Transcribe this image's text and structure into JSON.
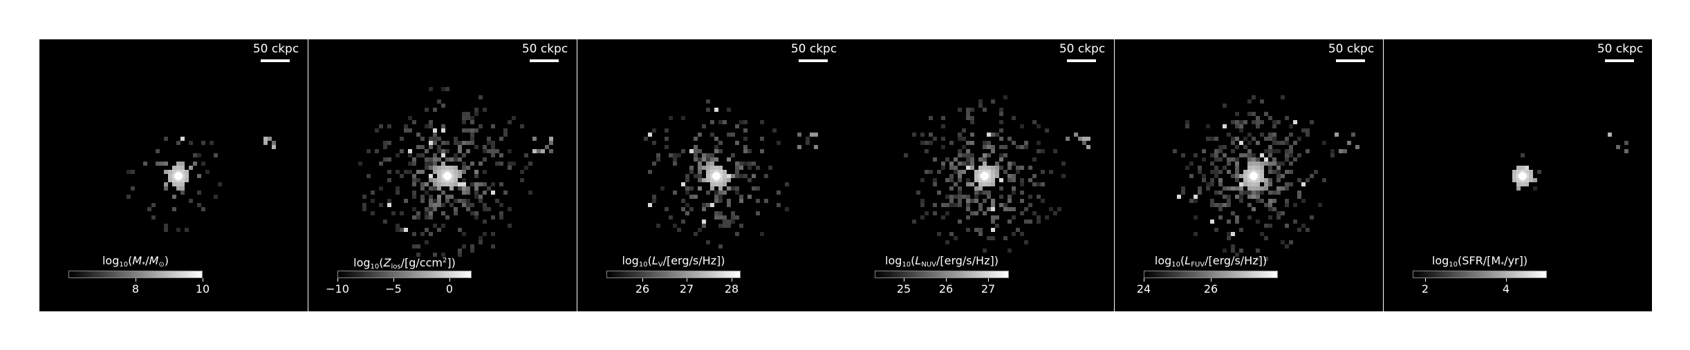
{
  "panels": [
    {
      "scalebar_label": "50 ckpc",
      "colorbar": {
        "title_html": "log<sub>10</sub>(<i>M</i><sub>*</sub>/<i>M</i><sub>⊙</sub>)",
        "range": [
          6.0,
          10.0
        ],
        "ticks": [
          {
            "value": 8,
            "label": "8"
          },
          {
            "value": 10,
            "label": "10"
          }
        ]
      },
      "image": {
        "spread": 0.55,
        "density": 0.25,
        "core": 1.0
      }
    },
    {
      "scalebar_label": "50 ckpc",
      "colorbar": {
        "title_html": "log<sub>10</sub>(<i>Z</i><sub>los</sub>/[g/ccm<sup>2</sup>])",
        "range": [
          -10.0,
          2.0
        ],
        "ticks": [
          {
            "value": -10,
            "label": "−10"
          },
          {
            "value": -5,
            "label": "−5"
          },
          {
            "value": 0,
            "label": "0"
          }
        ]
      },
      "image": {
        "spread": 1.0,
        "density": 0.6,
        "core": 0.9
      }
    },
    {
      "scalebar_label": "50 ckpc",
      "colorbar": {
        "title_html": "log<sub>10</sub>(<i>L</i><sub>V</sub>/[erg/s/Hz])",
        "range": [
          25.2,
          28.2
        ],
        "ticks": [
          {
            "value": 26,
            "label": "26"
          },
          {
            "value": 27,
            "label": "27"
          },
          {
            "value": 28,
            "label": "28"
          }
        ]
      },
      "image": {
        "spread": 0.9,
        "density": 0.45,
        "core": 1.0
      }
    },
    {
      "scalebar_label": "50 ckpc",
      "colorbar": {
        "title_html": "log<sub>10</sub>(<i>L</i><sub>NUV</sub>/[erg/s/Hz])",
        "range": [
          24.3,
          27.5
        ],
        "ticks": [
          {
            "value": 25,
            "label": "25"
          },
          {
            "value": 26,
            "label": "26"
          },
          {
            "value": 27,
            "label": "27"
          }
        ]
      },
      "image": {
        "spread": 0.95,
        "density": 0.55,
        "core": 1.0
      }
    },
    {
      "scalebar_label": "50 ckpc",
      "colorbar": {
        "title_html": "log<sub>10</sub>(<i>L</i><sub>FUV</sub>/[erg/s/Hz])",
        "range": [
          24.0,
          28.0
        ],
        "ticks": [
          {
            "value": 24,
            "label": "24"
          },
          {
            "value": 26,
            "label": "26"
          }
        ]
      },
      "image": {
        "spread": 0.95,
        "density": 0.55,
        "core": 1.0
      }
    },
    {
      "scalebar_label": "50 ckpc",
      "colorbar": {
        "title_html": "log<sub>10</sub>(SFR/[M<sub>*</sub>/yr])",
        "range": [
          1.7,
          5.0
        ],
        "ticks": [
          {
            "value": 2,
            "label": "2"
          },
          {
            "value": 4,
            "label": "4"
          }
        ]
      },
      "image": {
        "spread": 0.22,
        "density": 0.12,
        "core": 1.0
      }
    }
  ]
}
